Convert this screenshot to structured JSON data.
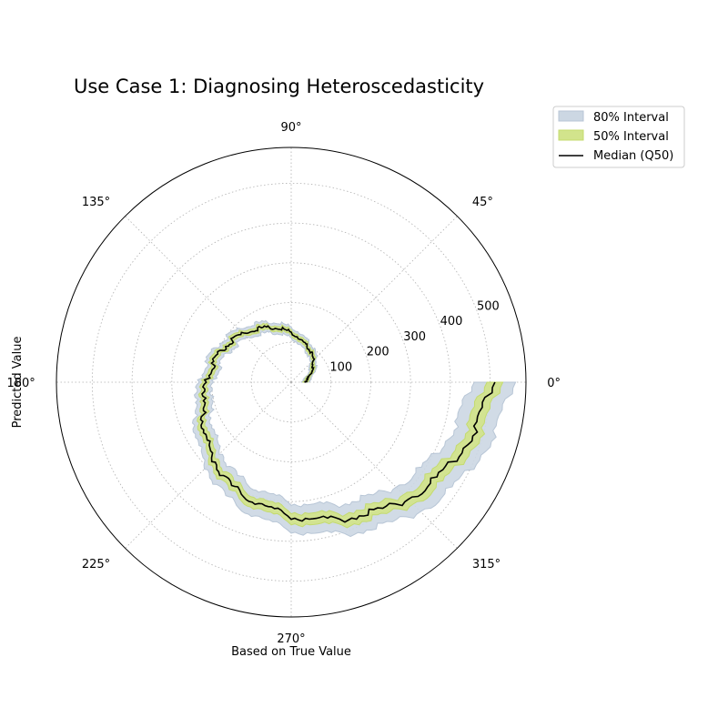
{
  "chart_data": {
    "type": "polar",
    "title": "Use Case 1: Diagnosing Heteroscedasticity",
    "xlabel": "Based on True Value",
    "ylabel": "Predicted Value",
    "angle_ticks": [
      "0°",
      "45°",
      "90°",
      "135°",
      "180°",
      "225°",
      "270°",
      "315°"
    ],
    "radial_ticks": [
      100,
      200,
      300,
      400,
      500
    ],
    "rlim": [
      0,
      590
    ],
    "grid": true,
    "legend_position": "upper-right-outside",
    "series": [
      {
        "name": "80% Interval",
        "type": "band",
        "color": "#ccd7e3"
      },
      {
        "name": "50% Interval",
        "type": "band",
        "color": "#d2e48c"
      },
      {
        "name": "Median (Q50)",
        "type": "line",
        "color": "#000000"
      }
    ],
    "median_points": [
      {
        "theta_deg": 0,
        "r": 35
      },
      {
        "theta_deg": 20,
        "r": 50
      },
      {
        "theta_deg": 40,
        "r": 75
      },
      {
        "theta_deg": 60,
        "r": 95
      },
      {
        "theta_deg": 80,
        "r": 115
      },
      {
        "theta_deg": 100,
        "r": 140
      },
      {
        "theta_deg": 120,
        "r": 160
      },
      {
        "theta_deg": 140,
        "r": 180
      },
      {
        "theta_deg": 160,
        "r": 200
      },
      {
        "theta_deg": 180,
        "r": 215
      },
      {
        "theta_deg": 200,
        "r": 240
      },
      {
        "theta_deg": 220,
        "r": 270
      },
      {
        "theta_deg": 240,
        "r": 305
      },
      {
        "theta_deg": 260,
        "r": 325
      },
      {
        "theta_deg": 280,
        "r": 355
      },
      {
        "theta_deg": 300,
        "r": 385
      },
      {
        "theta_deg": 320,
        "r": 430
      },
      {
        "theta_deg": 340,
        "r": 470
      },
      {
        "theta_deg": 360,
        "r": 510
      }
    ],
    "q50_halfwidth": [
      {
        "theta_deg": 0,
        "w": 5
      },
      {
        "theta_deg": 180,
        "w": 8
      },
      {
        "theta_deg": 360,
        "w": 20
      }
    ],
    "q80_halfwidth": [
      {
        "theta_deg": 0,
        "w": 9
      },
      {
        "theta_deg": 180,
        "w": 18
      },
      {
        "theta_deg": 360,
        "w": 52
      }
    ]
  }
}
